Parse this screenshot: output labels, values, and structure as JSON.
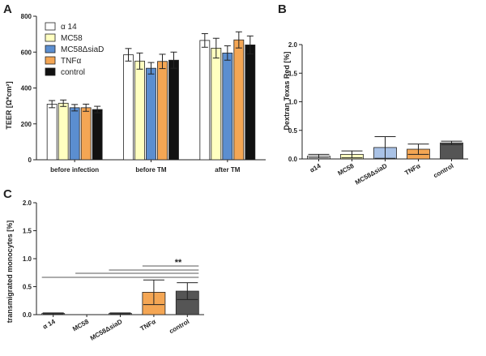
{
  "chart_data": [
    {
      "panel": "A",
      "type": "bar",
      "ylabel": "TEER [Ω*cm²]",
      "ylim": [
        0,
        800
      ],
      "yticks": [
        0,
        200,
        400,
        600,
        800
      ],
      "categories": [
        "before infection",
        "before TM",
        "after TM"
      ],
      "legend": [
        "α 14",
        "MC58",
        "MC58ΔsiaD",
        "TNFα",
        "control"
      ],
      "colors": [
        "#ffffff",
        "#ffffc0",
        "#5b8ed0",
        "#f4a654",
        "#111111"
      ],
      "series": [
        {
          "name": "α 14",
          "values": [
            310,
            585,
            665
          ],
          "errors": [
            20,
            35,
            38
          ]
        },
        {
          "name": "MC58",
          "values": [
            315,
            550,
            622
          ],
          "errors": [
            18,
            45,
            55
          ]
        },
        {
          "name": "MC58ΔsiaD",
          "values": [
            290,
            510,
            595
          ],
          "errors": [
            18,
            32,
            40
          ]
        },
        {
          "name": "TNFα",
          "values": [
            290,
            548,
            668
          ],
          "errors": [
            20,
            40,
            45
          ]
        },
        {
          "name": "control",
          "values": [
            280,
            555,
            640
          ],
          "errors": [
            18,
            45,
            50
          ]
        }
      ]
    },
    {
      "panel": "B",
      "type": "bar",
      "ylabel": "Dextran Texas Red [%]",
      "ylim": [
        0,
        2.0
      ],
      "yticks": [
        "0.0",
        "0.5",
        "1.0",
        "1.5",
        "2.0"
      ],
      "categories": [
        "α14",
        "MC58",
        "MC58ΔsiaD",
        "TNFα",
        "control"
      ],
      "colors": [
        "#ffffff",
        "#ffffc0",
        "#a9c2e6",
        "#f4a654",
        "#555555"
      ],
      "values": [
        0.05,
        0.08,
        0.2,
        0.17,
        0.28
      ],
      "errors": [
        0.03,
        0.06,
        0.19,
        0.09,
        0.03
      ]
    },
    {
      "panel": "C",
      "type": "bar",
      "ylabel": "transmigrated monocytes [%]",
      "ylim": [
        0,
        2.0
      ],
      "yticks": [
        "0.0",
        "0.5",
        "1.0",
        "1.5",
        "2.0"
      ],
      "categories": [
        "α 14",
        "MC58",
        "MC58ΔsiaD",
        "TNFα",
        "control"
      ],
      "colors": [
        "#ffffff",
        "#ffffff",
        "#ffffff",
        "#f4a654",
        "#555555"
      ],
      "values": [
        0.02,
        0.0,
        0.02,
        0.4,
        0.42
      ],
      "errors": [
        0.01,
        0.0,
        0.01,
        0.22,
        0.15
      ],
      "significance": "**"
    }
  ]
}
